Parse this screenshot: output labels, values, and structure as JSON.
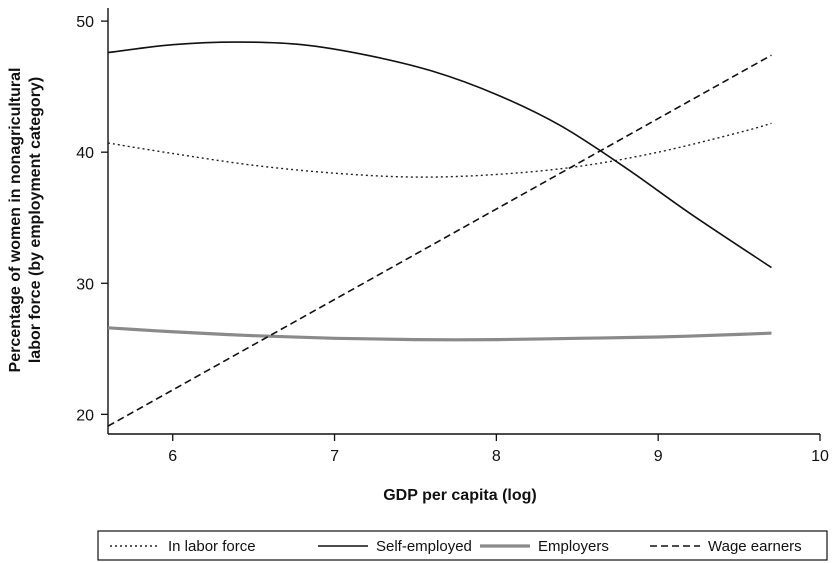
{
  "chart_data": {
    "type": "line",
    "title": "",
    "xlabel": "GDP per capita (log)",
    "ylabel_lines": [
      "Percentage of women in nonagricultural",
      "labor force (by employment category)"
    ],
    "xlim": [
      5.6,
      10
    ],
    "ylim": [
      18.5,
      51
    ],
    "x_ticks": [
      6,
      7,
      8,
      9,
      10
    ],
    "y_ticks": [
      20,
      30,
      40,
      50
    ],
    "grid": false,
    "legend_position": "bottom",
    "series": [
      {
        "name": "In labor force",
        "style": "dotted",
        "color": "#222222",
        "x": [
          5.6,
          6.0,
          6.5,
          7.0,
          7.5,
          8.0,
          8.5,
          9.0,
          9.5,
          9.7
        ],
        "values": [
          40.7,
          39.9,
          39.0,
          38.4,
          38.1,
          38.3,
          38.9,
          40.0,
          41.5,
          42.2
        ]
      },
      {
        "name": "Self-employed",
        "style": "solid",
        "color": "#111111",
        "x": [
          5.6,
          6.0,
          6.4,
          6.8,
          7.2,
          7.6,
          8.0,
          8.4,
          8.8,
          9.2,
          9.7
        ],
        "values": [
          47.6,
          48.2,
          48.4,
          48.2,
          47.4,
          46.2,
          44.4,
          42.0,
          38.8,
          35.3,
          31.2
        ]
      },
      {
        "name": "Employers",
        "style": "solid-thick",
        "color": "#8a8a8a",
        "x": [
          5.6,
          6.0,
          6.5,
          7.0,
          7.5,
          8.0,
          8.5,
          9.0,
          9.5,
          9.7
        ],
        "values": [
          26.6,
          26.3,
          26.0,
          25.8,
          25.7,
          25.7,
          25.8,
          25.9,
          26.1,
          26.2
        ]
      },
      {
        "name": "Wage earners",
        "style": "dashed",
        "color": "#111111",
        "x": [
          5.6,
          9.7
        ],
        "values": [
          19.1,
          47.4
        ]
      }
    ]
  }
}
